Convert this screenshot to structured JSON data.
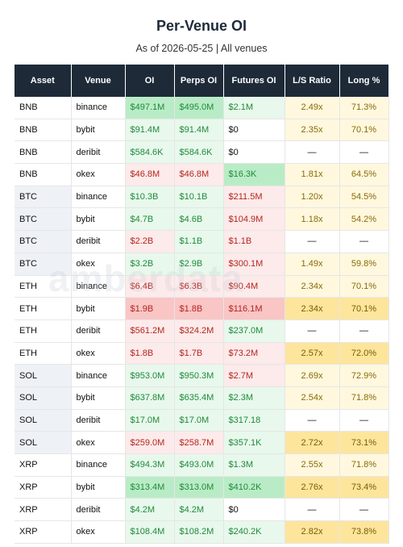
{
  "header": {
    "title": "Per-Venue OI",
    "subtitle": "As of 2026-05-25 | All venues"
  },
  "watermark": "amberdata",
  "table": {
    "headers": [
      "Asset",
      "Venue",
      "OI",
      "Perps OI",
      "Futures OI",
      "L/S Ratio",
      "Long %"
    ],
    "rows": [
      [
        "BNB",
        "binance",
        "$497.1M",
        "$495.0M",
        "$2.1M",
        "2.49x",
        "71.3%"
      ],
      [
        "BNB",
        "bybit",
        "$91.4M",
        "$91.4M",
        "$0",
        "2.35x",
        "70.1%"
      ],
      [
        "BNB",
        "deribit",
        "$584.6K",
        "$584.6K",
        "$0",
        "—",
        "—"
      ],
      [
        "BNB",
        "okex",
        "$46.8M",
        "$46.8M",
        "$16.3K",
        "1.81x",
        "64.5%"
      ],
      [
        "BTC",
        "binance",
        "$10.3B",
        "$10.1B",
        "$211.5M",
        "1.20x",
        "54.5%"
      ],
      [
        "BTC",
        "bybit",
        "$4.7B",
        "$4.6B",
        "$104.9M",
        "1.18x",
        "54.2%"
      ],
      [
        "BTC",
        "deribit",
        "$2.2B",
        "$1.1B",
        "$1.1B",
        "—",
        "—"
      ],
      [
        "BTC",
        "okex",
        "$3.2B",
        "$2.9B",
        "$300.1M",
        "1.49x",
        "59.8%"
      ],
      [
        "ETH",
        "binance",
        "$6.4B",
        "$6.3B",
        "$90.4M",
        "2.34x",
        "70.1%"
      ],
      [
        "ETH",
        "bybit",
        "$1.9B",
        "$1.8B",
        "$116.1M",
        "2.34x",
        "70.1%"
      ],
      [
        "ETH",
        "deribit",
        "$561.2M",
        "$324.2M",
        "$237.0M",
        "—",
        "—"
      ],
      [
        "ETH",
        "okex",
        "$1.8B",
        "$1.7B",
        "$73.2M",
        "2.57x",
        "72.0%"
      ],
      [
        "SOL",
        "binance",
        "$953.0M",
        "$950.3M",
        "$2.7M",
        "2.69x",
        "72.9%"
      ],
      [
        "SOL",
        "bybit",
        "$637.8M",
        "$635.4M",
        "$2.3M",
        "2.54x",
        "71.8%"
      ],
      [
        "SOL",
        "deribit",
        "$17.0M",
        "$17.0M",
        "$317.18",
        "—",
        "—"
      ],
      [
        "SOL",
        "okex",
        "$259.0M",
        "$258.7M",
        "$357.1K",
        "2.72x",
        "73.1%"
      ],
      [
        "XRP",
        "binance",
        "$494.3M",
        "$493.0M",
        "$1.3M",
        "2.55x",
        "71.8%"
      ],
      [
        "XRP",
        "bybit",
        "$313.4M",
        "$313.0M",
        "$410.2K",
        "2.76x",
        "73.4%"
      ],
      [
        "XRP",
        "deribit",
        "$4.2M",
        "$4.2M",
        "$0",
        "—",
        "—"
      ],
      [
        "XRP",
        "okex",
        "$108.4M",
        "$108.2M",
        "$240.2K",
        "2.82x",
        "73.8%"
      ]
    ]
  }
}
